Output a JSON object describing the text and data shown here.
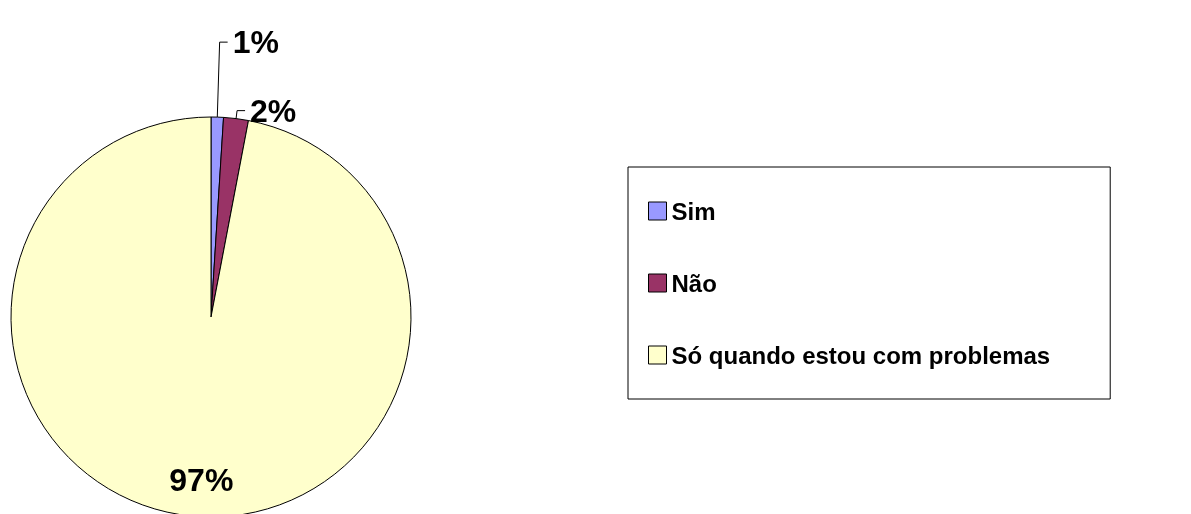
{
  "chart_data": {
    "type": "pie",
    "categories": [
      "Sim",
      "Não",
      "Só quando estou com problemas"
    ],
    "values": [
      1,
      2,
      97
    ],
    "colors": [
      "#9999ff",
      "#993366",
      "#ffffcc"
    ],
    "value_labels": [
      "1%",
      "2%",
      "97%"
    ],
    "legend": "right"
  }
}
